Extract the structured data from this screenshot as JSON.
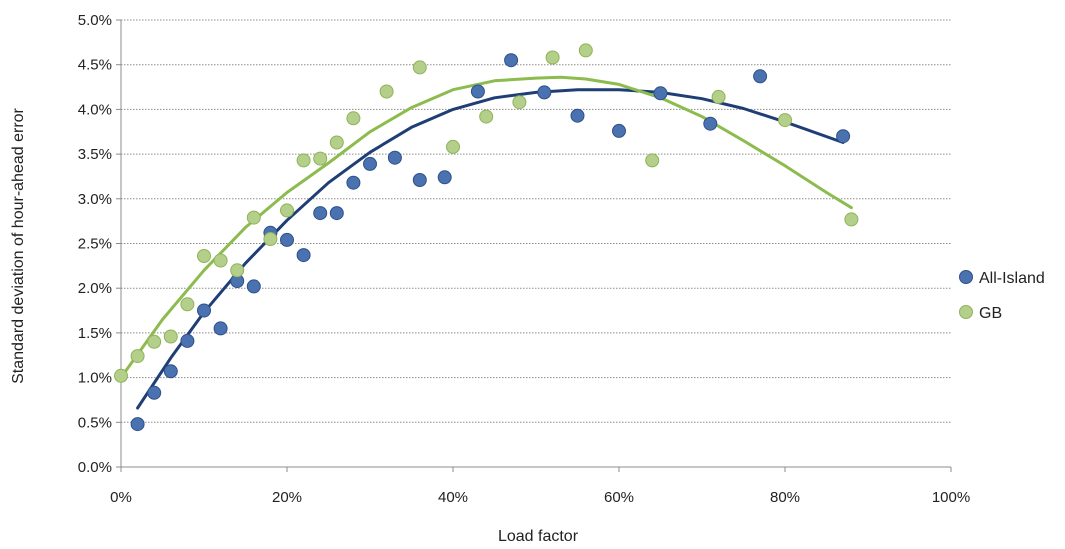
{
  "chart_data": {
    "type": "scatter",
    "title": "",
    "xlabel": "Load factor",
    "ylabel": "Standard deviation of hour-ahead error",
    "xlim": [
      0,
      1
    ],
    "ylim": [
      0,
      0.05
    ],
    "x_ticks": [
      {
        "value": 0,
        "label": "0%"
      },
      {
        "value": 0.2,
        "label": "20%"
      },
      {
        "value": 0.4,
        "label": "40%"
      },
      {
        "value": 0.6,
        "label": "60%"
      },
      {
        "value": 0.8,
        "label": "80%"
      },
      {
        "value": 1.0,
        "label": "100%"
      }
    ],
    "y_ticks": [
      {
        "value": 0.0,
        "label": "0.0%"
      },
      {
        "value": 0.005,
        "label": "0.5%"
      },
      {
        "value": 0.01,
        "label": "1.0%"
      },
      {
        "value": 0.015,
        "label": "1.5%"
      },
      {
        "value": 0.02,
        "label": "2.0%"
      },
      {
        "value": 0.025,
        "label": "2.5%"
      },
      {
        "value": 0.03,
        "label": "3.0%"
      },
      {
        "value": 0.035,
        "label": "3.5%"
      },
      {
        "value": 0.04,
        "label": "4.0%"
      },
      {
        "value": 0.045,
        "label": "4.5%"
      },
      {
        "value": 0.05,
        "label": "5.0%"
      }
    ],
    "grid": "horizontal dotted",
    "legend_position": "right",
    "series": [
      {
        "name": "All-Island",
        "color": "#4a72b0",
        "edge_color": "#2f5088",
        "trend_color": "#1f3e75",
        "points": [
          [
            0.02,
            0.0048
          ],
          [
            0.04,
            0.0083
          ],
          [
            0.06,
            0.0107
          ],
          [
            0.08,
            0.0141
          ],
          [
            0.1,
            0.0175
          ],
          [
            0.12,
            0.0155
          ],
          [
            0.14,
            0.0208
          ],
          [
            0.16,
            0.0202
          ],
          [
            0.18,
            0.0262
          ],
          [
            0.2,
            0.0254
          ],
          [
            0.22,
            0.0237
          ],
          [
            0.24,
            0.0284
          ],
          [
            0.26,
            0.0284
          ],
          [
            0.28,
            0.0318
          ],
          [
            0.3,
            0.0339
          ],
          [
            0.33,
            0.0346
          ],
          [
            0.36,
            0.0321
          ],
          [
            0.39,
            0.0324
          ],
          [
            0.43,
            0.042
          ],
          [
            0.47,
            0.0455
          ],
          [
            0.51,
            0.0419
          ],
          [
            0.55,
            0.0393
          ],
          [
            0.6,
            0.0376
          ],
          [
            0.65,
            0.0418
          ],
          [
            0.71,
            0.0384
          ],
          [
            0.77,
            0.0437
          ],
          [
            0.87,
            0.037
          ]
        ],
        "trend": [
          [
            0.02,
            0.0066
          ],
          [
            0.06,
            0.0122
          ],
          [
            0.1,
            0.0173
          ],
          [
            0.15,
            0.0228
          ],
          [
            0.2,
            0.0276
          ],
          [
            0.25,
            0.0318
          ],
          [
            0.3,
            0.0352
          ],
          [
            0.35,
            0.038
          ],
          [
            0.4,
            0.04
          ],
          [
            0.45,
            0.0413
          ],
          [
            0.5,
            0.0419
          ],
          [
            0.55,
            0.0422
          ],
          [
            0.6,
            0.0422
          ],
          [
            0.65,
            0.0419
          ],
          [
            0.7,
            0.0412
          ],
          [
            0.75,
            0.0401
          ],
          [
            0.8,
            0.0386
          ],
          [
            0.87,
            0.0363
          ]
        ]
      },
      {
        "name": "GB",
        "color": "#b3cf8a",
        "edge_color": "#8fb35a",
        "trend_color": "#8cbb4e",
        "points": [
          [
            0.0,
            0.0102
          ],
          [
            0.02,
            0.0124
          ],
          [
            0.04,
            0.014
          ],
          [
            0.06,
            0.0146
          ],
          [
            0.08,
            0.0182
          ],
          [
            0.1,
            0.0236
          ],
          [
            0.12,
            0.0231
          ],
          [
            0.14,
            0.022
          ],
          [
            0.16,
            0.0279
          ],
          [
            0.18,
            0.0255
          ],
          [
            0.2,
            0.0287
          ],
          [
            0.22,
            0.0343
          ],
          [
            0.24,
            0.0345
          ],
          [
            0.26,
            0.0363
          ],
          [
            0.28,
            0.039
          ],
          [
            0.32,
            0.042
          ],
          [
            0.36,
            0.0447
          ],
          [
            0.4,
            0.0358
          ],
          [
            0.44,
            0.0392
          ],
          [
            0.48,
            0.0408
          ],
          [
            0.52,
            0.0458
          ],
          [
            0.56,
            0.0466
          ],
          [
            0.64,
            0.0343
          ],
          [
            0.72,
            0.0414
          ],
          [
            0.8,
            0.0388
          ],
          [
            0.88,
            0.0277
          ]
        ],
        "trend": [
          [
            0.0,
            0.01
          ],
          [
            0.05,
            0.0165
          ],
          [
            0.1,
            0.022
          ],
          [
            0.15,
            0.0268
          ],
          [
            0.2,
            0.0307
          ],
          [
            0.25,
            0.034
          ],
          [
            0.3,
            0.0375
          ],
          [
            0.35,
            0.0402
          ],
          [
            0.4,
            0.0422
          ],
          [
            0.45,
            0.0432
          ],
          [
            0.5,
            0.0435
          ],
          [
            0.53,
            0.0436
          ],
          [
            0.56,
            0.0434
          ],
          [
            0.6,
            0.0428
          ],
          [
            0.65,
            0.0413
          ],
          [
            0.7,
            0.0392
          ],
          [
            0.75,
            0.0365
          ],
          [
            0.8,
            0.0337
          ],
          [
            0.85,
            0.0307
          ],
          [
            0.88,
            0.029
          ]
        ]
      }
    ]
  }
}
